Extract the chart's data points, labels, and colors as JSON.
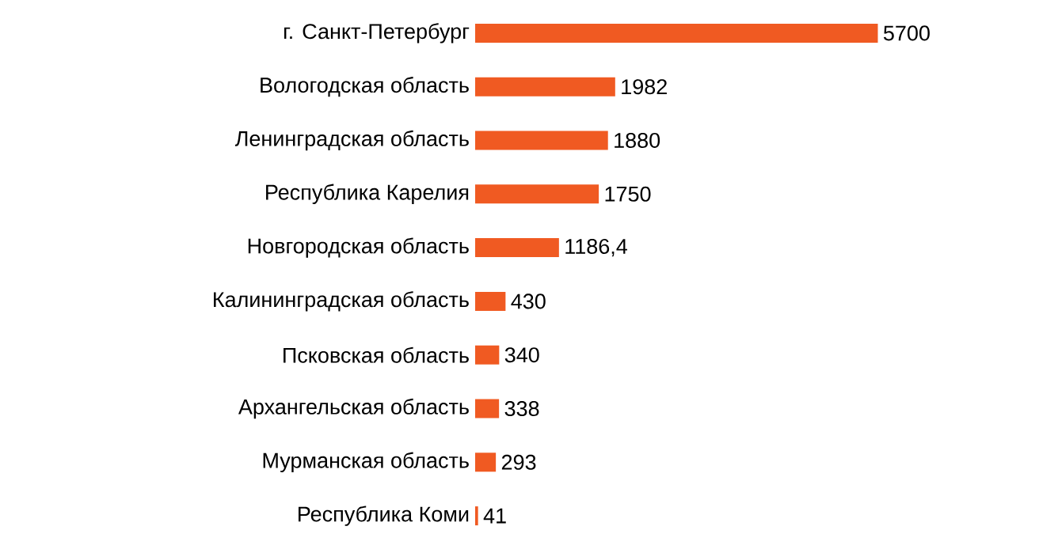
{
  "chart_data": {
    "type": "bar",
    "orientation": "horizontal",
    "categories": [
      "г. Санкт-Петербург",
      "Вологодская область",
      "Ленинградская область",
      "Республика Карелия",
      "Новгородская область",
      "Калининградская область",
      "Псковская область",
      "Архангельская область",
      "Мурманская область",
      "Республика Коми"
    ],
    "values": [
      5700,
      1982,
      1880,
      1750,
      1186.4,
      430,
      340,
      338,
      293,
      41
    ],
    "value_labels": [
      "5700",
      "1982",
      "1880",
      "1750",
      "1186,4",
      "430",
      "340",
      "338",
      "293",
      "41"
    ],
    "color": "#f05a22"
  }
}
